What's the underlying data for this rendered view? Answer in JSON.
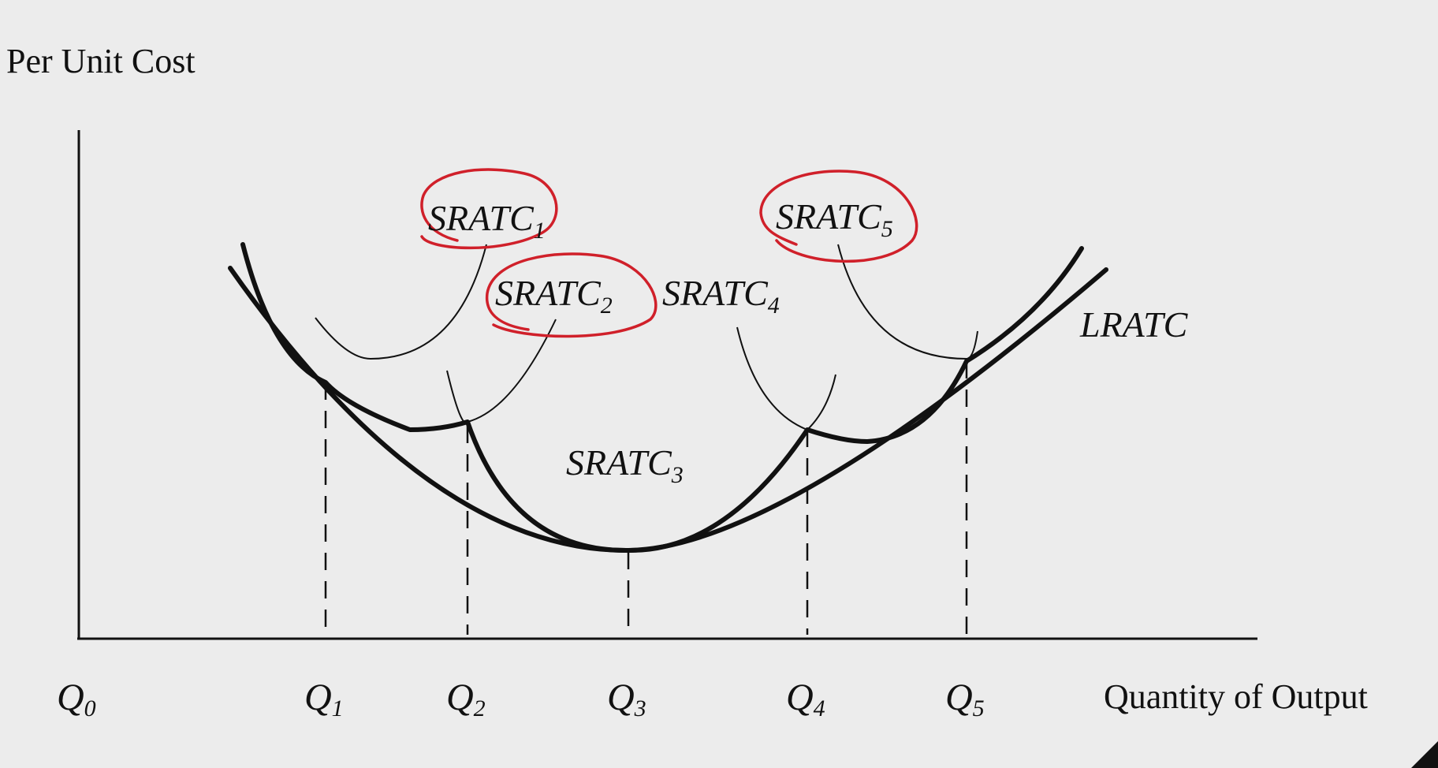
{
  "diagram": {
    "y_axis_label": "Per Unit Cost",
    "x_axis_label": "Quantity of Output",
    "quantities": [
      {
        "main": "Q",
        "sub": "0"
      },
      {
        "main": "Q",
        "sub": "1"
      },
      {
        "main": "Q",
        "sub": "2"
      },
      {
        "main": "Q",
        "sub": "3"
      },
      {
        "main": "Q",
        "sub": "4"
      },
      {
        "main": "Q",
        "sub": "5"
      }
    ],
    "curves": [
      {
        "main": "SRATC",
        "sub": "1",
        "circled": true
      },
      {
        "main": "SRATC",
        "sub": "2",
        "circled": true
      },
      {
        "main": "SRATC",
        "sub": "3",
        "circled": false
      },
      {
        "main": "SRATC",
        "sub": "4",
        "circled": false
      },
      {
        "main": "SRATC",
        "sub": "5",
        "circled": true
      },
      {
        "main": "LRATC",
        "sub": "",
        "circled": false
      }
    ],
    "colors": {
      "background": "#ececec",
      "ink": "#111111",
      "annotation": "#d0202a"
    }
  }
}
